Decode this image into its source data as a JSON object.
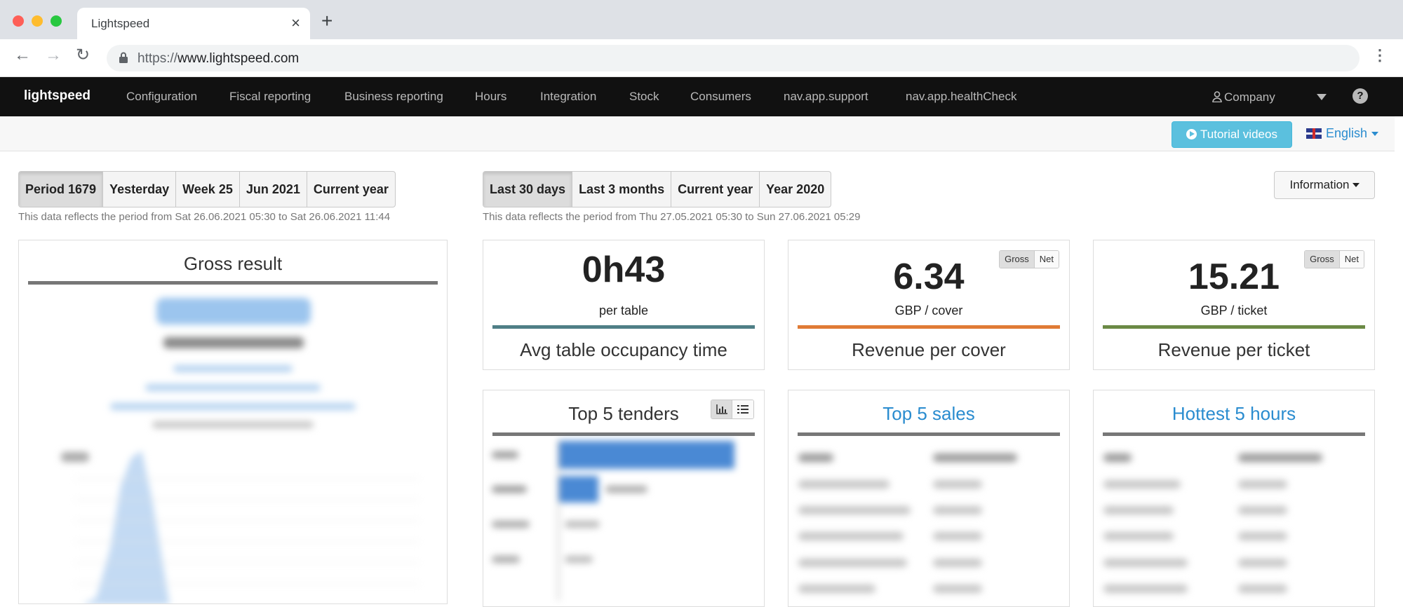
{
  "browser": {
    "tab_title": "Lightspeed",
    "tab_close": "×",
    "new_tab": "+",
    "url_scheme": "https://",
    "url_host": "www.lightspeed.com"
  },
  "appnav": {
    "brand": "lightspeed",
    "links": [
      "Configuration",
      "Fiscal reporting",
      "Business reporting",
      "Hours",
      "Integration",
      "Stock",
      "Consumers",
      "nav.app.support",
      "nav.app.healthCheck"
    ],
    "company": "Company",
    "help": "?"
  },
  "subheader": {
    "tutorial_label": "Tutorial videos",
    "language": "English"
  },
  "left_periods": {
    "buttons": [
      "Period 1679",
      "Yesterday",
      "Week 25",
      "Jun 2021",
      "Current year"
    ],
    "active": "Period 1679",
    "note": "This data reflects the period from Sat 26.06.2021 05:30 to Sat 26.06.2021 11:44"
  },
  "right_periods": {
    "buttons": [
      "Last 30 days",
      "Last 3 months",
      "Current year",
      "Year 2020"
    ],
    "active": "Last 30 days",
    "note": "This data reflects the period from Thu 27.05.2021 05:30 to Sun 27.06.2021 05:29"
  },
  "information_label": "Information",
  "gross_result": {
    "title": "Gross result"
  },
  "kpis": {
    "occupancy": {
      "value": "0h43",
      "unit": "per table",
      "label": "Avg table occupancy time",
      "color": "#4f7f86"
    },
    "per_cover": {
      "value": "6.34",
      "unit": "GBP / cover",
      "label": "Revenue per cover",
      "color": "#e07b35",
      "gross": "Gross",
      "net": "Net"
    },
    "per_ticket": {
      "value": "15.21",
      "unit": "GBP / ticket",
      "label": "Revenue per ticket",
      "color": "#6b8a45",
      "gross": "Gross",
      "net": "Net"
    }
  },
  "top_tenders": {
    "title": "Top 5 tenders"
  },
  "top_sales": {
    "title": "Top 5 sales"
  },
  "hottest_hours": {
    "title": "Hottest 5 hours"
  },
  "colors": {
    "nav_bg": "#111111",
    "accent_blue": "#2a8ccf",
    "tutorial_bg": "#5bc0de"
  }
}
